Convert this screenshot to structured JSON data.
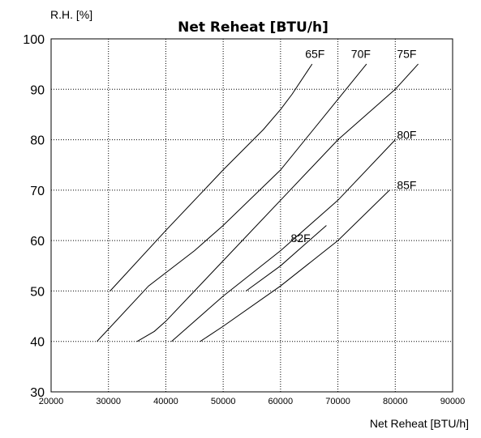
{
  "chart_data": {
    "type": "line",
    "title": "Net Reheat [BTU/h]",
    "xlabel": "Net Reheat [BTU/h]",
    "ylabel": "R.H. [%]",
    "xlim": [
      20000,
      90000
    ],
    "ylim": [
      30,
      100
    ],
    "x_ticks": [
      20000,
      30000,
      40000,
      50000,
      60000,
      70000,
      80000,
      90000
    ],
    "y_ticks": [
      30,
      40,
      50,
      60,
      70,
      80,
      90,
      100
    ],
    "grid": true,
    "series": [
      {
        "name": "65F",
        "points": [
          [
            30300,
            50
          ],
          [
            40000,
            62
          ],
          [
            50000,
            74
          ],
          [
            57000,
            82
          ],
          [
            60000,
            86
          ],
          [
            62000,
            89
          ],
          [
            65500,
            95
          ]
        ]
      },
      {
        "name": "70F",
        "points": [
          [
            28000,
            40
          ],
          [
            37000,
            51
          ],
          [
            45000,
            58
          ],
          [
            50000,
            63
          ],
          [
            60000,
            74
          ],
          [
            70000,
            88
          ],
          [
            75000,
            95
          ]
        ]
      },
      {
        "name": "75F",
        "points": [
          [
            35000,
            40
          ],
          [
            38000,
            42
          ],
          [
            40000,
            44
          ],
          [
            50000,
            56
          ],
          [
            60000,
            68
          ],
          [
            70000,
            80
          ],
          [
            80000,
            90
          ],
          [
            84000,
            95
          ]
        ]
      },
      {
        "name": "80F",
        "points": [
          [
            41000,
            40
          ],
          [
            50000,
            49
          ],
          [
            60000,
            58
          ],
          [
            70000,
            68
          ],
          [
            80000,
            80
          ]
        ]
      },
      {
        "name": "82F",
        "points": [
          [
            54000,
            50
          ],
          [
            60000,
            55
          ],
          [
            65000,
            60
          ],
          [
            68000,
            63
          ]
        ]
      },
      {
        "name": "85F",
        "points": [
          [
            46000,
            40
          ],
          [
            50000,
            43
          ],
          [
            60000,
            51
          ],
          [
            70000,
            60
          ],
          [
            79000,
            70
          ]
        ]
      }
    ],
    "series_labels": [
      {
        "text": "65F",
        "x": 66000,
        "y": 97
      },
      {
        "text": "70F",
        "x": 74000,
        "y": 97
      },
      {
        "text": "75F",
        "x": 82000,
        "y": 97
      },
      {
        "text": "80F",
        "x": 82000,
        "y": 81
      },
      {
        "text": "85F",
        "x": 82000,
        "y": 71
      },
      {
        "text": "82F",
        "x": 63500,
        "y": 60.5
      }
    ]
  }
}
